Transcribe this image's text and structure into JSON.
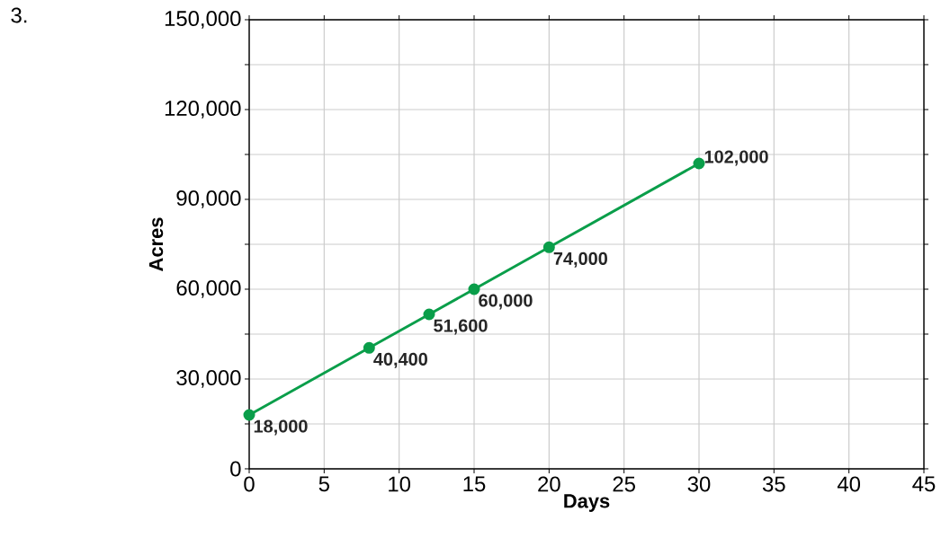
{
  "chart_data": {
    "type": "line",
    "xlabel": "Days",
    "ylabel": "Acres",
    "annotations": [
      "3."
    ],
    "x": [
      0,
      8,
      12,
      15,
      20,
      30
    ],
    "series": [
      {
        "color": "#0a9e4a",
        "values": [
          18000,
          40400,
          51600,
          60000,
          74000,
          102000
        ],
        "value_labels": [
          "18,000",
          "40,400",
          "51,600",
          "60,000",
          "74,000",
          "102,000"
        ]
      }
    ],
    "xlim": [
      0,
      45
    ],
    "ylim": [
      0,
      150000
    ],
    "xticks": [
      0,
      5,
      10,
      15,
      20,
      25,
      30,
      35,
      40,
      45
    ],
    "yticks": [
      {
        "value": 0,
        "label": "0"
      },
      {
        "value": 15000,
        "label": null
      },
      {
        "value": 30000,
        "label": "30,000"
      },
      {
        "value": 45000,
        "label": null
      },
      {
        "value": 60000,
        "label": "60,000"
      },
      {
        "value": 75000,
        "label": null
      },
      {
        "value": 90000,
        "label": "90,000"
      },
      {
        "value": 105000,
        "label": null
      },
      {
        "value": 120000,
        "label": "120,000"
      },
      {
        "value": 135000,
        "label": null
      },
      {
        "value": 150000,
        "label": "150,000"
      }
    ],
    "grid": true,
    "marker": "circle",
    "line_style": "solid"
  }
}
